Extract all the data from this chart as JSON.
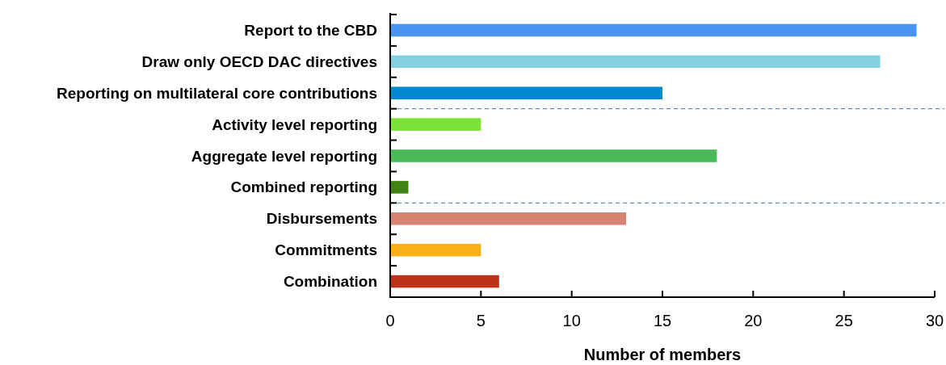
{
  "chart_data": {
    "type": "bar",
    "orientation": "horizontal",
    "xlabel": "Number of members",
    "categories": [
      "Report to the CBD",
      "Draw only OECD DAC directives",
      "Reporting on multilateral core contributions",
      "Activity level reporting",
      "Aggregate level reporting",
      "Combined reporting",
      "Disbursements",
      "Commitments",
      "Combination"
    ],
    "values": [
      29,
      27,
      15,
      5,
      18,
      1,
      13,
      5,
      6
    ],
    "colors": [
      "#4893f4",
      "#84d1e4",
      "#0089d0",
      "#7de136",
      "#4aba57",
      "#418215",
      "#d78371",
      "#fcaf17",
      "#be3219"
    ],
    "xlim": [
      0,
      30
    ],
    "xticks": [
      0,
      5,
      10,
      15,
      20,
      25,
      30
    ],
    "grid": false
  }
}
